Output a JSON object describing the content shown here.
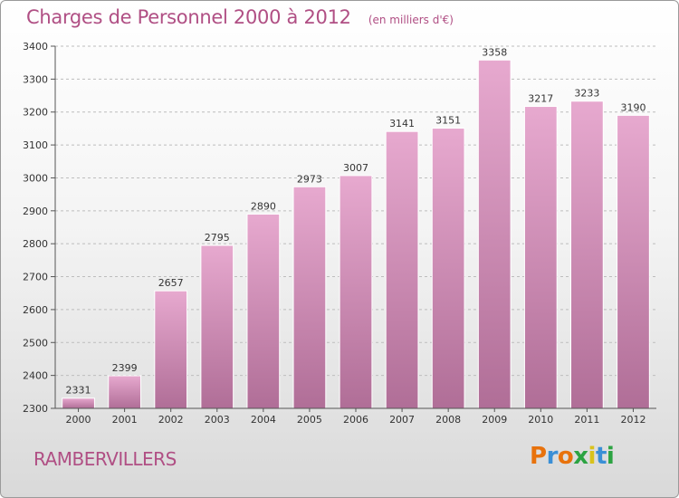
{
  "header": {
    "title": "Charges de Personnel 2000 à 2012",
    "subtitle": "(en milliers d'€)"
  },
  "footer": {
    "commune": "RAMBERVILLERS",
    "logo_letters": [
      "P",
      "r",
      "o",
      "x",
      "i",
      "t",
      "i"
    ]
  },
  "colors": {
    "title": "#b04f84",
    "bar_top": "#e7a9cf",
    "bar_bottom": "#b06e97",
    "axis": "#555555",
    "grid": "#bdbdbd"
  },
  "chart_data": {
    "type": "bar",
    "title": "Charges de Personnel 2000 à 2012",
    "subtitle": "(en milliers d'€)",
    "xlabel": "",
    "ylabel": "",
    "categories": [
      "2000",
      "2001",
      "2002",
      "2003",
      "2004",
      "2005",
      "2006",
      "2007",
      "2008",
      "2009",
      "2010",
      "2011",
      "2012"
    ],
    "values": [
      2331,
      2399,
      2657,
      2795,
      2890,
      2973,
      3007,
      3141,
      3151,
      3358,
      3217,
      3233,
      3190
    ],
    "ylim": [
      2300,
      3400
    ],
    "yticks": [
      2300,
      2400,
      2500,
      2600,
      2700,
      2800,
      2900,
      3000,
      3100,
      3200,
      3300,
      3400
    ],
    "grid": true,
    "legend": "none"
  }
}
